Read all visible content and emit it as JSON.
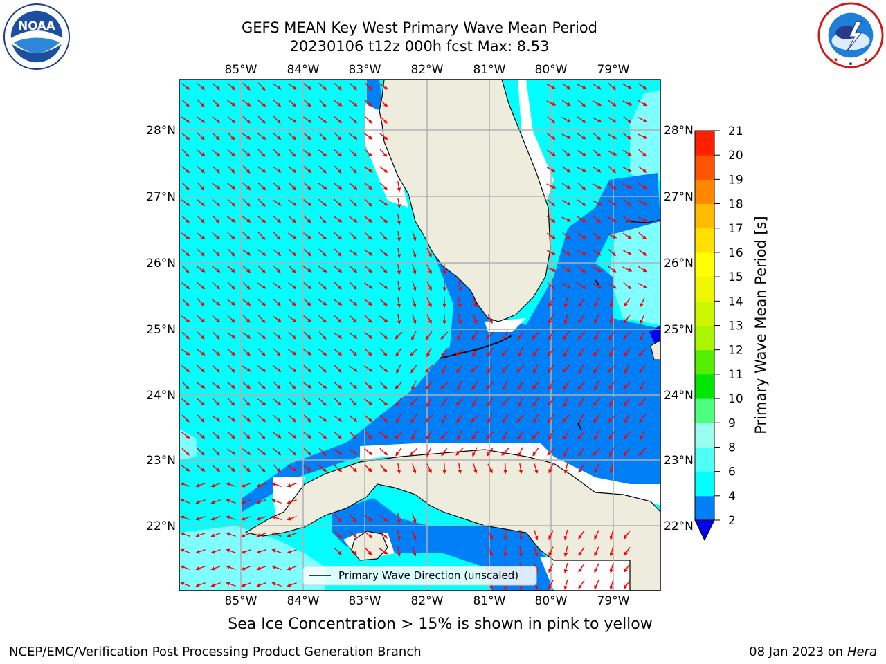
{
  "title_line1": "GEFS MEAN Key West Primary Wave Mean Period",
  "title_line2": "20230106 t12z 000h fcst   Max: 8.53",
  "logos": {
    "left": "noaa-logo",
    "left_text": "NOAA",
    "right": "nws-logo"
  },
  "map": {
    "lon_labels": [
      "85°W",
      "84°W",
      "83°W",
      "82°W",
      "81°W",
      "80°W",
      "79°W"
    ],
    "lat_labels": [
      "28°N",
      "27°N",
      "26°N",
      "25°N",
      "24°N",
      "23°N",
      "22°N"
    ],
    "legend_label": "Primary Wave Direction (unscaled)",
    "colors": {
      "land": "#eeecdc",
      "period_2_4": "#007ff7",
      "period_4_6": "#00ffff",
      "period_6_8": "#7fffff",
      "arrow": "#ff0000",
      "grid": "#b0b0b0"
    }
  },
  "colorbar": {
    "label": "Primary Wave Mean Period [s]",
    "ticks": [
      "2",
      "4",
      "6",
      "8",
      "9",
      "10",
      "11",
      "12",
      "13",
      "14",
      "15",
      "16",
      "17",
      "18",
      "19",
      "20",
      "21"
    ],
    "colors": [
      "#007ff7",
      "#00ffff",
      "#4dfff5",
      "#99fff0",
      "#4dff7f",
      "#00e600",
      "#55ee00",
      "#aaf500",
      "#ccf700",
      "#eef700",
      "#ffff00",
      "#ffe000",
      "#ffbb00",
      "#ff8800",
      "#ff5500",
      "#ff2000"
    ],
    "under_color": "#0000ee"
  },
  "footer_note": "Sea Ice Concentration > 15% is shown in pink to yellow",
  "footer_left": "NCEP/EMC/Verification Post Processing Product Generation Branch",
  "footer_date": "08 Jan 2023 on",
  "footer_host": "Hera"
}
